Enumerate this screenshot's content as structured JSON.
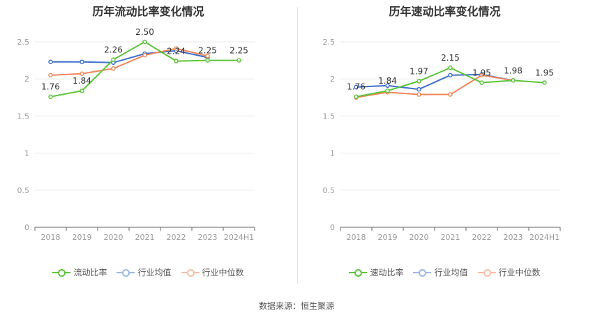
{
  "source": "数据来源：恒生聚源",
  "colors": {
    "main": "#5cc43a",
    "avg": "#3e6fcc",
    "median": "#f0875a",
    "axis": "#999999",
    "grid": "#e8e8ee"
  },
  "chart_data": [
    {
      "type": "line",
      "title": "历年流动比率变化情况",
      "categories": [
        "2018",
        "2019",
        "2020",
        "2021",
        "2022",
        "2023",
        "2024H1"
      ],
      "ylim": [
        0,
        2.5
      ],
      "yticks": [
        "0",
        "0.5",
        "1",
        "1.5",
        "2",
        "2.5"
      ],
      "legend_position": "bottom",
      "series": [
        {
          "name": "流动比率",
          "values": [
            1.76,
            1.84,
            2.26,
            2.5,
            2.24,
            2.25,
            2.25
          ],
          "labels": [
            "1.76",
            "1.84",
            "2.26",
            "2.50",
            "2.24",
            "2.25",
            "2.25"
          ]
        },
        {
          "name": "行业均值",
          "values": [
            2.23,
            2.23,
            2.22,
            2.34,
            2.38,
            2.29,
            null
          ]
        },
        {
          "name": "行业中位数",
          "values": [
            2.05,
            2.07,
            2.14,
            2.32,
            2.41,
            2.31,
            null
          ]
        }
      ]
    },
    {
      "type": "line",
      "title": "历年速动比率变化情况",
      "categories": [
        "2018",
        "2019",
        "2020",
        "2021",
        "2022",
        "2023",
        "2024H1"
      ],
      "ylim": [
        0,
        2.5
      ],
      "yticks": [
        "0",
        "0.5",
        "1",
        "1.5",
        "2",
        "2.5"
      ],
      "legend_position": "bottom",
      "series": [
        {
          "name": "速动比率",
          "values": [
            1.76,
            1.84,
            1.97,
            2.15,
            1.95,
            1.98,
            1.95
          ],
          "labels": [
            "1.76",
            "1.84",
            "1.97",
            "2.15",
            "1.95",
            "1.98",
            "1.95"
          ]
        },
        {
          "name": "行业均值",
          "values": [
            1.89,
            1.91,
            1.86,
            2.05,
            2.06,
            1.98,
            null
          ]
        },
        {
          "name": "行业中位数",
          "values": [
            1.75,
            1.82,
            1.79,
            1.79,
            2.05,
            1.98,
            null
          ]
        }
      ]
    }
  ]
}
